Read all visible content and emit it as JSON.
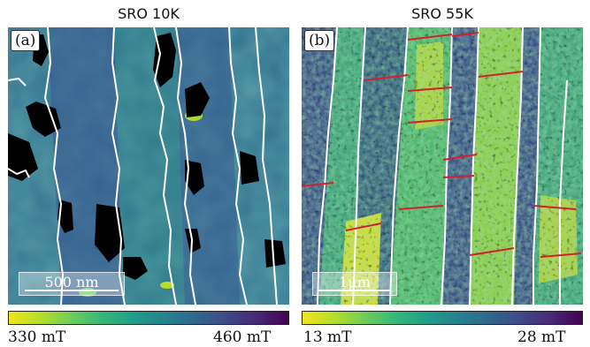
{
  "panels": [
    {
      "title": "SRO 10K",
      "label": "(a)",
      "scalebar": "500 nm",
      "colorbar_min": "330 mT",
      "colorbar_max": "460 mT"
    },
    {
      "title": "SRO 55K",
      "label": "(b)",
      "scalebar": "1μm",
      "colorbar_min": "13 mT",
      "colorbar_max": "28 mT"
    }
  ],
  "colors": {
    "colormap": [
      "#f1e51d",
      "#35b779",
      "#26828e",
      "#3e4a89",
      "#440154"
    ],
    "boundary": "#ffffff",
    "wall_marks": "#d4202a"
  }
}
